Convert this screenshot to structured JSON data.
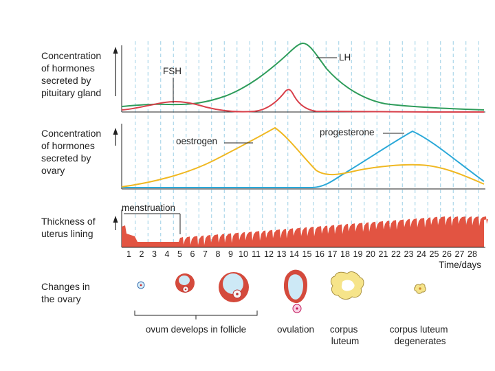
{
  "rows": {
    "pituitary": {
      "label_lines": [
        "Concentration",
        "of hormones",
        "secreted by",
        "pituitary gland"
      ]
    },
    "ovary": {
      "label_lines": [
        "Concentration",
        "of hormones",
        "secreted by",
        "ovary"
      ]
    },
    "uterus": {
      "label_lines": [
        "Thickness of",
        "uterus lining"
      ]
    },
    "changes": {
      "label_lines": [
        "Changes in",
        "the ovary"
      ]
    }
  },
  "curve_labels": {
    "lh": "LH",
    "fsh": "FSH",
    "oestrogen": "oestrogen",
    "progesterone": "progesterone",
    "menstruation": "menstruation"
  },
  "x_axis": {
    "days": [
      1,
      2,
      3,
      4,
      5,
      6,
      7,
      8,
      9,
      10,
      11,
      12,
      13,
      14,
      15,
      16,
      17,
      18,
      19,
      20,
      21,
      22,
      23,
      24,
      25,
      26,
      27,
      28
    ],
    "label": "Time/days"
  },
  "ovary_stages": {
    "follicle": [
      "ovum develops in follicle"
    ],
    "ovulation": [
      "ovulation"
    ],
    "corpus_luteum": [
      "corpus",
      "luteum"
    ],
    "degenerates": [
      "corpus luteum",
      "degenerates"
    ]
  },
  "colors": {
    "lh": "#2e9c5a",
    "fsh": "#d8404a",
    "oestrogen": "#f0b822",
    "progesterone": "#2aa8d8",
    "lining": "#e25442",
    "gridline": "#9ccfe6",
    "follicle_wall": "#d44a3c",
    "follicle_fluid": "#cde9f6",
    "corpus_luteum": "#f6e48a"
  }
}
